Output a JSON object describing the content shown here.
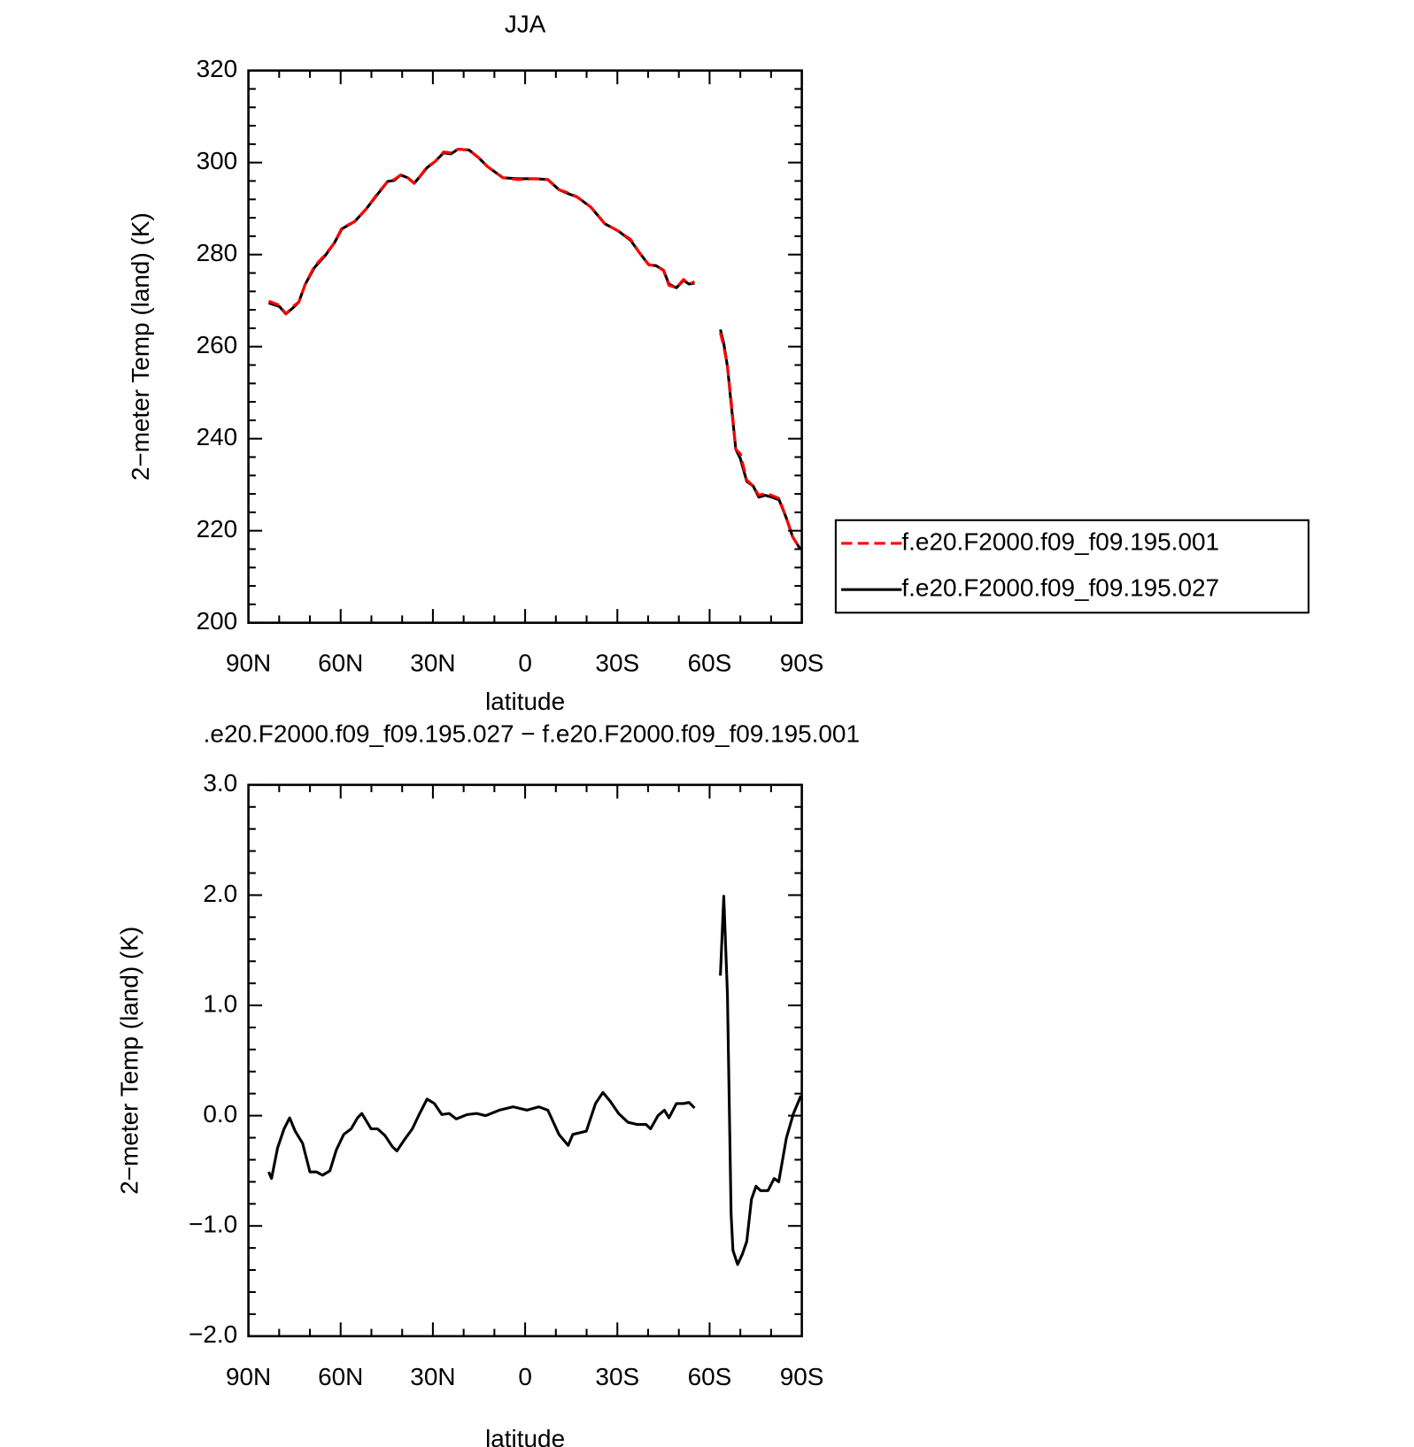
{
  "chart_data": [
    {
      "type": "line",
      "title": "JJA",
      "xlabel": "latitude",
      "ylabel": "2−meter Temp (land) (K)",
      "xlim": [
        90,
        -90
      ],
      "ylim": [
        200,
        320
      ],
      "xticks": [
        {
          "value": 90,
          "label": "90N"
        },
        {
          "value": 60,
          "label": "60N"
        },
        {
          "value": 30,
          "label": "30N"
        },
        0,
        {
          "value": -30,
          "label": "30S"
        },
        {
          "value": -60,
          "label": "60S"
        },
        {
          "value": -90,
          "label": "90S"
        }
      ],
      "minor_xticks": [
        80,
        70,
        50,
        40,
        20,
        10,
        -10,
        -20,
        -40,
        -50,
        -70,
        -80
      ],
      "yticks": [
        200,
        220,
        240,
        260,
        280,
        300,
        320
      ],
      "minor_yticks": [
        204,
        208,
        212,
        216,
        224,
        228,
        232,
        236,
        244,
        248,
        252,
        256,
        264,
        268,
        272,
        276,
        284,
        288,
        292,
        296,
        304,
        308,
        312,
        316
      ],
      "legend": "right",
      "x": [
        83.4,
        79.9,
        77.8,
        75.4,
        73.6,
        71.5,
        68.5,
        65.0,
        62.0,
        59.6,
        55.4,
        51.6,
        48.0,
        44.7,
        42.6,
        40.5,
        38.2,
        36.1,
        34.3,
        31.9,
        29.5,
        26.5,
        24.1,
        21.8,
        18.2,
        15.2,
        12.2,
        7.2,
        2.4,
        -3.6,
        -7.4,
        -11.0,
        -14.6,
        -17.0,
        -21.4,
        -25.9,
        -30.4,
        -34.3,
        -37.2,
        -40.2,
        -42.6,
        -45.0,
        -46.8,
        -49.2,
        -51.5,
        -53.3,
        -55.1,
        -59,
        -63.5,
        -64.6,
        -65.8,
        -67.0,
        -68.5,
        -70.0,
        -72.1,
        -74.2,
        -76.0,
        -78.1,
        -80.2,
        -82.6,
        -85.0,
        -87.0,
        -89.4
      ],
      "series": [
        {
          "name": "f.e20.F2000.f09_f09.195.001",
          "color": "#ff0000",
          "dash": true,
          "values": [
            269.9,
            269.0,
            267.1,
            268.8,
            269.7,
            273.6,
            277.5,
            280.0,
            282.6,
            285.8,
            287.2,
            290.0,
            293.3,
            295.9,
            296.3,
            297.3,
            296.7,
            295.5,
            296.9,
            299.1,
            300.1,
            302.3,
            302.1,
            302.9,
            302.7,
            301.1,
            299.1,
            296.7,
            296.3,
            296.5,
            296.3,
            294.1,
            293.3,
            292.5,
            290.3,
            286.7,
            285.1,
            283.3,
            280.4,
            277.8,
            277.6,
            276.6,
            273.3,
            272.8,
            274.6,
            273.6,
            274.1,
            null,
            263.0,
            260.0,
            255.7,
            248.5,
            237.7,
            236.7,
            231.0,
            229.7,
            227.7,
            228.1,
            227.7,
            227.0,
            222.7,
            218.7,
            216.1
          ]
        },
        {
          "name": "f.e20.F2000.f09_f09.195.027",
          "color": "#000000",
          "dash": false,
          "values": [
            269.5,
            268.7,
            267.1,
            268.5,
            269.7,
            273.6,
            277.2,
            279.8,
            282.6,
            285.6,
            287.2,
            290.0,
            293.1,
            295.9,
            296.1,
            297.3,
            296.7,
            295.5,
            296.9,
            298.9,
            300.1,
            302.1,
            301.9,
            302.9,
            302.7,
            301.1,
            299.1,
            296.7,
            296.5,
            296.5,
            296.3,
            294.1,
            293.1,
            292.5,
            290.3,
            286.7,
            285.1,
            283.1,
            280.4,
            277.8,
            277.6,
            276.6,
            273.6,
            272.8,
            274.4,
            273.6,
            273.8,
            null,
            263.7,
            260.7,
            255.7,
            247.7,
            237.7,
            235.7,
            230.7,
            229.7,
            227.3,
            227.7,
            227.3,
            226.7,
            222.7,
            218.7,
            216.1
          ]
        }
      ]
    },
    {
      "type": "line",
      "title": ".e20.F2000.f09_f09.195.027 − f.e20.F2000.f09_f09.195.001",
      "xlabel": "latitude",
      "ylabel": "2−meter Temp (land) (K)",
      "xlim": [
        90,
        -90
      ],
      "ylim": [
        -2.0,
        3.0
      ],
      "xticks": [
        {
          "value": 90,
          "label": "90N"
        },
        {
          "value": 60,
          "label": "60N"
        },
        {
          "value": 30,
          "label": "30N"
        },
        0,
        {
          "value": -30,
          "label": "30S"
        },
        {
          "value": -60,
          "label": "60S"
        },
        {
          "value": -90,
          "label": "90S"
        }
      ],
      "minor_xticks": [
        80,
        70,
        50,
        40,
        20,
        10,
        -10,
        -20,
        -40,
        -50,
        -70,
        -80
      ],
      "yticks": [
        {
          "value": -2.0,
          "label": "−2.0"
        },
        {
          "value": -1.0,
          "label": "−1.0"
        },
        {
          "value": 0.0,
          "label": "0.0"
        },
        {
          "value": 1.0,
          "label": "1.0"
        },
        {
          "value": 2.0,
          "label": "2.0"
        },
        {
          "value": 3.0,
          "label": "3.0"
        }
      ],
      "minor_yticks": [
        -1.8,
        -1.6,
        -1.4,
        -1.2,
        -0.8,
        -0.6,
        -0.4,
        -0.2,
        0.2,
        0.4,
        0.6,
        0.8,
        1.2,
        1.4,
        1.6,
        1.8,
        2.2,
        2.4,
        2.6,
        2.8
      ],
      "color": "#000000",
      "x": [
        83.4,
        82.5,
        80.5,
        78.4,
        76.6,
        74.8,
        72.4,
        70.0,
        67.9,
        65.9,
        63.5,
        61.4,
        59.0,
        56.6,
        54.5,
        53.1,
        50.1,
        48.0,
        45.6,
        43.2,
        41.7,
        39.3,
        36.7,
        34.3,
        31.9,
        29.5,
        27.1,
        24.7,
        22.4,
        18.8,
        15.8,
        12.8,
        8.4,
        3.9,
        -0.6,
        -4.5,
        -7.4,
        -11.0,
        -14.0,
        -15.5,
        -19.9,
        -22.9,
        -25.3,
        -27.7,
        -30.4,
        -33.4,
        -36.4,
        -39.3,
        -40.8,
        -43.2,
        -45.3,
        -46.8,
        -49.2,
        -51.5,
        -53.3,
        -55.1,
        -59,
        -63.5,
        -64.6,
        -65.8,
        -67.0,
        -67.6,
        -69.1,
        -70.6,
        -72.1,
        -73.6,
        -75.1,
        -76.6,
        -79.0,
        -81.0,
        -82.5,
        -85.0,
        -87.3,
        -89.7
      ],
      "values": [
        -0.51,
        -0.57,
        -0.29,
        -0.12,
        -0.02,
        -0.14,
        -0.25,
        -0.51,
        -0.51,
        -0.54,
        -0.5,
        -0.31,
        -0.17,
        -0.12,
        -0.02,
        0.02,
        -0.12,
        -0.12,
        -0.18,
        -0.28,
        -0.32,
        -0.22,
        -0.12,
        0.02,
        0.15,
        0.11,
        0.01,
        0.02,
        -0.03,
        0.01,
        0.02,
        0.0,
        0.05,
        0.08,
        0.05,
        0.08,
        0.05,
        -0.17,
        -0.27,
        -0.17,
        -0.14,
        0.11,
        0.21,
        0.13,
        0.02,
        -0.06,
        -0.08,
        -0.08,
        -0.12,
        0.0,
        0.05,
        -0.02,
        0.11,
        0.11,
        0.12,
        0.07,
        null,
        1.27,
        1.99,
        1.1,
        -0.89,
        -1.22,
        -1.35,
        -1.26,
        -1.14,
        -0.76,
        -0.64,
        -0.68,
        -0.68,
        -0.57,
        -0.6,
        -0.2,
        0.02,
        0.18
      ]
    }
  ]
}
